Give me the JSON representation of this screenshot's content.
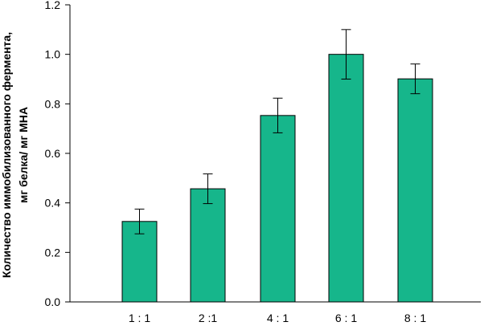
{
  "chart_data": {
    "type": "bar",
    "categories": [
      "1 : 1",
      "2 :1",
      "4 : 1",
      "6 : 1",
      "8 : 1"
    ],
    "values": [
      0.325,
      0.457,
      0.753,
      1.0,
      0.901
    ],
    "error": [
      0.05,
      0.06,
      0.07,
      0.1,
      0.06
    ],
    "ylabel_lines": [
      "Количество иммобилизованного фермента,",
      "мг белка/ мг МНА"
    ],
    "xlabel": "",
    "ylim": [
      0.0,
      1.2
    ],
    "yticks": [
      0.0,
      0.2,
      0.4,
      0.6,
      0.8,
      1.0,
      1.2
    ],
    "ytick_labels": [
      "0.0",
      "0.2",
      "0.4",
      "0.6",
      "0.8",
      "1.0",
      "1.2"
    ],
    "bar_color": "#16b68b",
    "grid": false
  }
}
